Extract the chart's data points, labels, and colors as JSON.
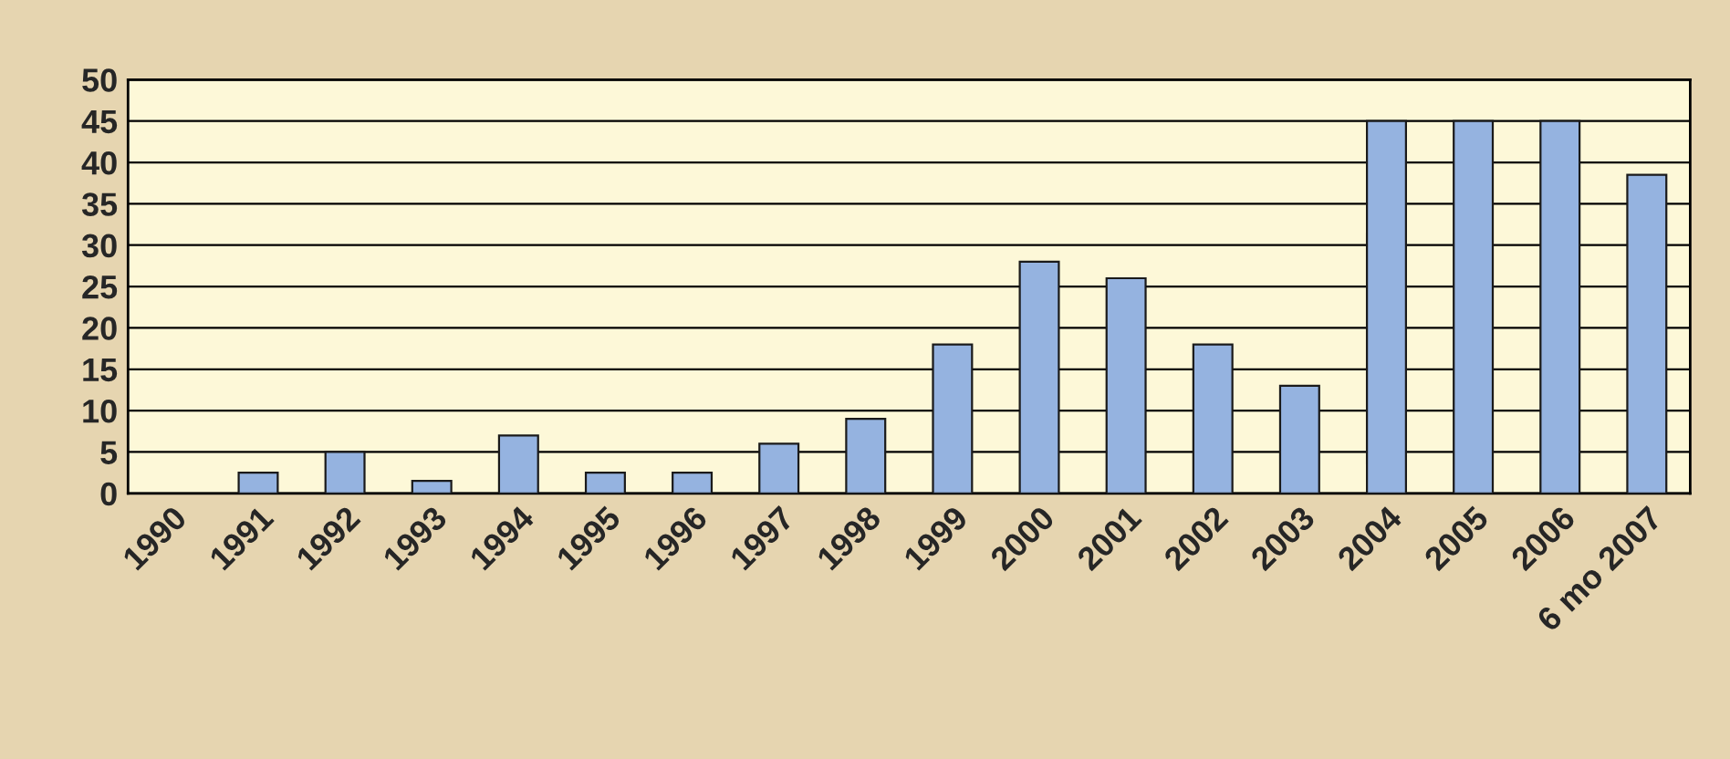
{
  "chart_data": {
    "type": "bar",
    "categories": [
      "1990",
      "1991",
      "1992",
      "1993",
      "1994",
      "1995",
      "1996",
      "1997",
      "1998",
      "1999",
      "2000",
      "2001",
      "2002",
      "2003",
      "2004",
      "2005",
      "2006",
      "6 mo 2007"
    ],
    "values": [
      0,
      2.5,
      5,
      1.5,
      7,
      2.5,
      2.5,
      6,
      9,
      18,
      28,
      26,
      18,
      13,
      45,
      45,
      45,
      38.5
    ],
    "color": "#95b3e0",
    "ylim": [
      0,
      50
    ],
    "yticks": [
      0,
      5,
      10,
      15,
      20,
      25,
      30,
      35,
      40,
      45,
      50
    ],
    "grid": "y"
  }
}
